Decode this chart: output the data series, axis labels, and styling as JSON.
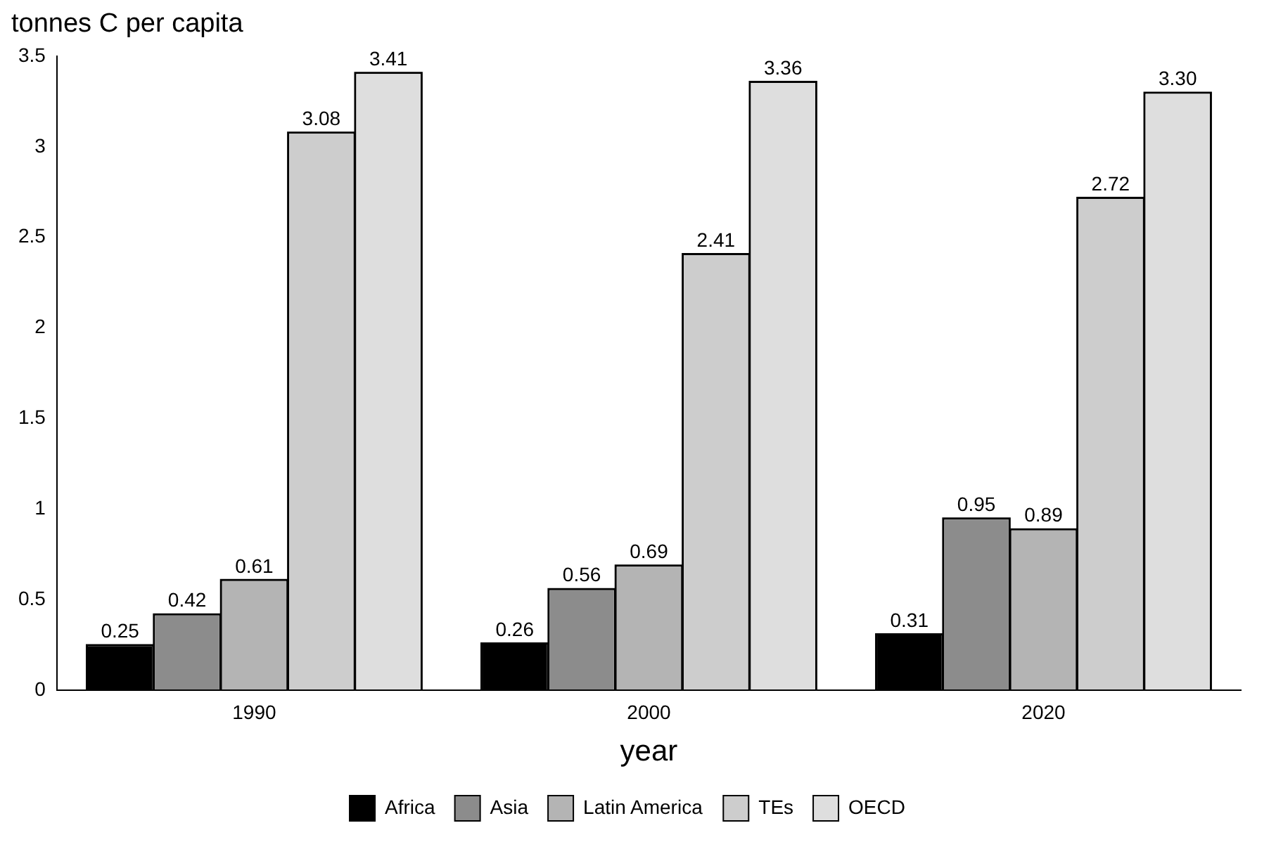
{
  "chart_data": {
    "type": "bar",
    "ylabel": "tonnes C per capita",
    "xlabel": "year",
    "categories": [
      "1990",
      "2000",
      "2020"
    ],
    "series": [
      {
        "name": "Africa",
        "color": "#000000",
        "values": [
          0.25,
          0.26,
          0.31
        ],
        "value_labels": [
          "0.25",
          "0.26",
          "0.31"
        ]
      },
      {
        "name": "Asia",
        "color": "#8c8c8c",
        "values": [
          0.42,
          0.56,
          0.95
        ],
        "value_labels": [
          "0.42",
          "0.56",
          "0.95"
        ]
      },
      {
        "name": "Latin America",
        "color": "#b4b4b4",
        "values": [
          0.61,
          0.69,
          0.89
        ],
        "value_labels": [
          "0.61",
          "0.69",
          "0.89"
        ]
      },
      {
        "name": "TEs",
        "color": "#cdcdcd",
        "values": [
          3.08,
          2.41,
          2.72
        ],
        "value_labels": [
          "3.08",
          "2.41",
          "2.72"
        ]
      },
      {
        "name": "OECD",
        "color": "#dedede",
        "values": [
          3.41,
          3.36,
          3.3
        ],
        "value_labels": [
          "3.41",
          "3.36",
          "3.30"
        ]
      }
    ],
    "ylim": [
      0,
      3.5
    ],
    "yticks": [
      0,
      0.5,
      1,
      1.5,
      2,
      2.5,
      3,
      3.5
    ],
    "grid": false,
    "legend": "bottom"
  }
}
